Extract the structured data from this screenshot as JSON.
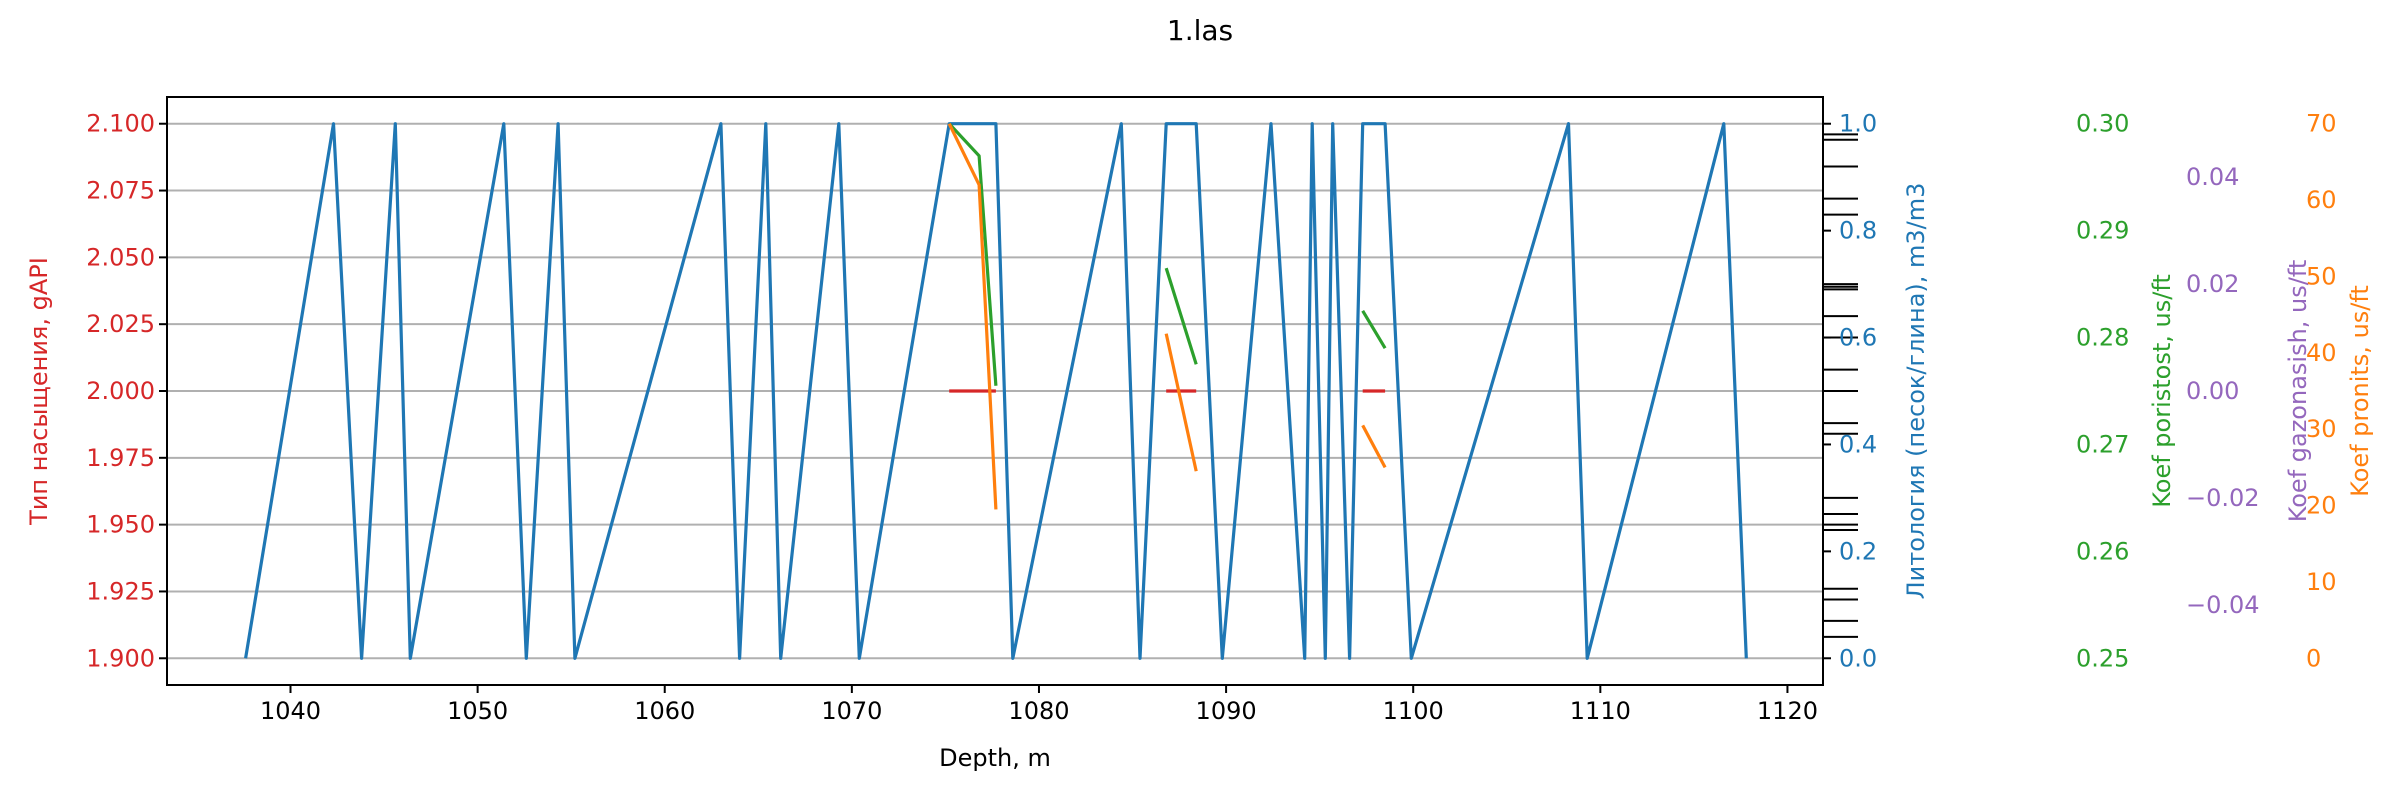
{
  "chart_data": {
    "type": "line",
    "title": "1.las",
    "xlabel": "Depth, m",
    "xlim": [
      1033.4,
      1121.9
    ],
    "xticks": [
      1040,
      1050,
      1060,
      1070,
      1080,
      1090,
      1100,
      1110,
      1120
    ],
    "grid": true,
    "legend": "none",
    "axes": [
      {
        "id": "saturation",
        "label": "Тип насыщения, gAPI",
        "color": "#d62728",
        "ylim": [
          1.89,
          2.11
        ],
        "ticks": [
          1.9,
          1.925,
          1.95,
          1.975,
          2.0,
          2.025,
          2.05,
          2.075,
          2.1
        ],
        "tick_labels": [
          "1.900",
          "1.925",
          "1.950",
          "1.975",
          "2.000",
          "2.025",
          "2.050",
          "2.075",
          "2.100"
        ]
      },
      {
        "id": "lithology",
        "label": "Литология (песок/глина), m3/m3",
        "color": "#1f77b4",
        "ylim": [
          -0.05,
          1.05
        ],
        "ticks": [
          0.0,
          0.2,
          0.4,
          0.6,
          0.8,
          1.0
        ],
        "tick_labels": [
          "0.0",
          "0.2",
          "0.4",
          "0.6",
          "0.8",
          "1.0"
        ]
      },
      {
        "id": "porosity",
        "label": "Koef poristost, us/ft",
        "color": "#2ca02c",
        "ylim": [
          0.2475,
          0.3025
        ],
        "ticks": [
          0.25,
          0.26,
          0.27,
          0.28,
          0.29,
          0.3
        ],
        "tick_labels": [
          "0.25",
          "0.26",
          "0.27",
          "0.28",
          "0.29",
          "0.30"
        ]
      },
      {
        "id": "gas",
        "label": "Koef gazonasish, us/ft",
        "color": "#9467bd",
        "ylim": [
          -0.055,
          0.055
        ],
        "ticks": [
          -0.04,
          -0.02,
          0.0,
          0.02,
          0.04
        ],
        "tick_labels": [
          "−0.04",
          "−0.02",
          "0.00",
          "0.02",
          "0.04"
        ]
      },
      {
        "id": "permeability",
        "label": "Koef pronits, us/ft",
        "color": "#ff7f0e",
        "ylim": [
          -3.5,
          73.5
        ],
        "ticks": [
          0,
          10,
          20,
          30,
          40,
          50,
          60,
          70
        ],
        "tick_labels": [
          "0",
          "10",
          "20",
          "30",
          "40",
          "50",
          "60",
          "70"
        ]
      }
    ],
    "series": [
      {
        "axis": "lithology",
        "color": "#1f77b4",
        "segments": [
          [
            [
              1037.6,
              0
            ],
            [
              1042.3,
              1
            ],
            [
              1043.8,
              0
            ],
            [
              1045.6,
              1
            ],
            [
              1046.4,
              0
            ],
            [
              1051.4,
              1
            ],
            [
              1052.6,
              0
            ],
            [
              1054.3,
              1
            ],
            [
              1055.2,
              0
            ],
            [
              1063.0,
              1
            ],
            [
              1064.0,
              0
            ],
            [
              1065.4,
              1
            ],
            [
              1066.2,
              0
            ],
            [
              1069.3,
              1
            ],
            [
              1070.4,
              0
            ],
            [
              1075.2,
              1
            ],
            [
              1077.7,
              1
            ],
            [
              1078.6,
              0
            ],
            [
              1084.4,
              1
            ],
            [
              1085.4,
              0
            ],
            [
              1086.8,
              1
            ],
            [
              1088.4,
              1
            ],
            [
              1089.8,
              0
            ],
            [
              1092.4,
              1
            ],
            [
              1094.2,
              0
            ],
            [
              1094.6,
              1
            ],
            [
              1095.3,
              0
            ],
            [
              1095.7,
              1
            ],
            [
              1096.6,
              0
            ],
            [
              1097.3,
              1
            ],
            [
              1098.5,
              1
            ],
            [
              1099.9,
              0
            ],
            [
              1108.3,
              1
            ],
            [
              1109.3,
              0
            ],
            [
              1116.6,
              1
            ],
            [
              1117.8,
              0
            ]
          ]
        ]
      },
      {
        "axis": "saturation",
        "color": "#d62728",
        "segments": [
          [
            [
              1075.2,
              2.0
            ],
            [
              1077.7,
              2.0
            ]
          ],
          [
            [
              1086.8,
              2.0
            ],
            [
              1088.4,
              2.0
            ]
          ],
          [
            [
              1097.3,
              2.0
            ],
            [
              1098.5,
              2.0
            ]
          ]
        ]
      },
      {
        "axis": "porosity",
        "color": "#2ca02c",
        "segments": [
          [
            [
              1075.2,
              0.3
            ],
            [
              1076.8,
              0.297
            ],
            [
              1077.7,
              0.2755
            ]
          ],
          [
            [
              1086.8,
              0.2865
            ],
            [
              1088.4,
              0.2775
            ]
          ],
          [
            [
              1097.3,
              0.2825
            ],
            [
              1098.5,
              0.279
            ]
          ]
        ]
      },
      {
        "axis": "permeability",
        "color": "#ff7f0e",
        "segments": [
          [
            [
              1075.2,
              70
            ],
            [
              1076.8,
              62
            ],
            [
              1077.7,
              19.5
            ]
          ],
          [
            [
              1086.8,
              42.5
            ],
            [
              1088.4,
              24.5
            ]
          ],
          [
            [
              1097.3,
              30.5
            ],
            [
              1098.5,
              25
            ]
          ]
        ]
      }
    ],
    "tail_marks_lithology": [
      0.98,
      0.97,
      0.92,
      0.86,
      0.83,
      0.7,
      0.695,
      0.69,
      0.64,
      0.6,
      0.54,
      0.5,
      0.44,
      0.42,
      0.3,
      0.27,
      0.25,
      0.24,
      0.13,
      0.11,
      0.07,
      0.04
    ]
  }
}
